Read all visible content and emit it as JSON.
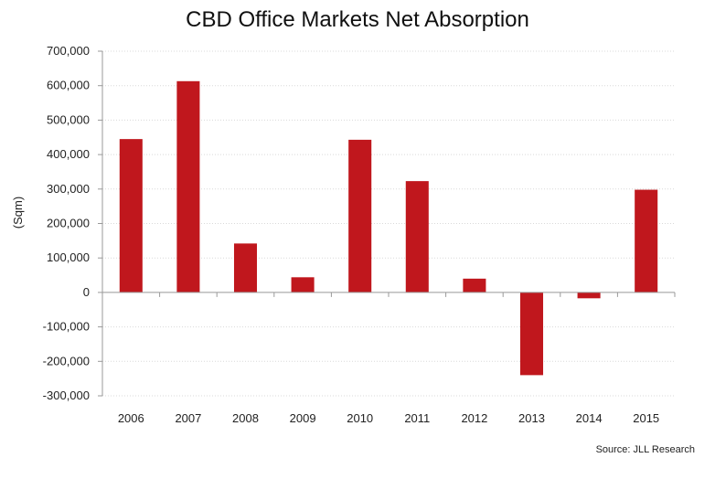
{
  "chart_data": {
    "type": "bar",
    "title": "CBD Office Markets Net Absorption",
    "xlabel": "",
    "ylabel": "(Sqm)",
    "categories": [
      "2006",
      "2007",
      "2008",
      "2009",
      "2010",
      "2011",
      "2012",
      "2013",
      "2014",
      "2015"
    ],
    "values": [
      445000,
      613000,
      142000,
      44000,
      443000,
      323000,
      40000,
      -240000,
      -17000,
      298000
    ],
    "ylim": [
      -300000,
      700000
    ],
    "yticks": [
      700000,
      600000,
      500000,
      400000,
      300000,
      200000,
      100000,
      0,
      -100000,
      -200000,
      -300000
    ],
    "ytick_labels": [
      "700,000",
      "600,000",
      "500,000",
      "400,000",
      "300,000",
      "200,000",
      "100,000",
      "0",
      "-100,000",
      "-200,000",
      "-300,000"
    ],
    "grid": true,
    "legend": "none",
    "bar_color": "#c0171d",
    "source": "Source: JLL Research"
  }
}
